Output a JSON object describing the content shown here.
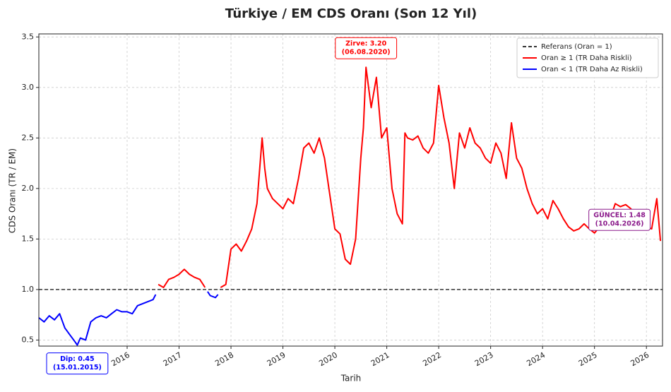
{
  "chart_data": {
    "type": "line",
    "title": "Türkiye / EM CDS Oranı (Son 12 Yıl)",
    "x_label": "Tarih",
    "y_label": "CDS Oranı (TR / EM)",
    "xlim": [
      2014.3,
      2026.31
    ],
    "xticks": [
      2016,
      2017,
      2018,
      2019,
      2020,
      2021,
      2022,
      2023,
      2024,
      2025,
      2026
    ],
    "ylim": [
      0.44,
      3.53
    ],
    "yticks": [
      0.5,
      {
        "value": 1,
        "label": "1.0"
      },
      1.5,
      {
        "value": 2,
        "label": "2.0"
      },
      2.5,
      {
        "value": 3,
        "label": "3.0"
      },
      3.5
    ],
    "grid": true,
    "legend": "upper right",
    "reference_line": {
      "name": "Referans (Oran = 1)",
      "value": 1,
      "color": "#333333"
    },
    "x": [
      2014.3,
      2014.4,
      2014.5,
      2014.6,
      2014.7,
      2014.8,
      2014.9,
      2015.0,
      2015.04,
      2015.1,
      2015.2,
      2015.3,
      2015.4,
      2015.5,
      2015.6,
      2015.7,
      2015.8,
      2015.9,
      2016.0,
      2016.1,
      2016.2,
      2016.3,
      2016.4,
      2016.5,
      2016.55,
      2016.6,
      2016.7,
      2016.8,
      2016.9,
      2017.0,
      2017.1,
      2017.2,
      2017.3,
      2017.4,
      2017.5,
      2017.55,
      2017.6,
      2017.7,
      2017.75,
      2017.8,
      2017.9,
      2018.0,
      2018.1,
      2018.2,
      2018.3,
      2018.4,
      2018.5,
      2018.6,
      2018.65,
      2018.7,
      2018.8,
      2018.9,
      2019.0,
      2019.1,
      2019.2,
      2019.3,
      2019.4,
      2019.5,
      2019.6,
      2019.7,
      2019.8,
      2019.9,
      2020.0,
      2020.1,
      2020.2,
      2020.3,
      2020.4,
      2020.5,
      2020.55,
      2020.6,
      2020.7,
      2020.8,
      2020.9,
      2021.0,
      2021.1,
      2021.2,
      2021.3,
      2021.35,
      2021.4,
      2021.5,
      2021.6,
      2021.7,
      2021.8,
      2021.9,
      2022.0,
      2022.1,
      2022.2,
      2022.3,
      2022.4,
      2022.5,
      2022.6,
      2022.7,
      2022.8,
      2022.9,
      2023.0,
      2023.1,
      2023.2,
      2023.3,
      2023.4,
      2023.5,
      2023.6,
      2023.7,
      2023.8,
      2023.9,
      2024.0,
      2024.1,
      2024.2,
      2024.3,
      2024.4,
      2024.5,
      2024.6,
      2024.7,
      2024.8,
      2024.9,
      2025.0,
      2025.1,
      2025.2,
      2025.3,
      2025.4,
      2025.5,
      2025.6,
      2025.7,
      2025.8,
      2025.9,
      2026.0,
      2026.1,
      2026.2,
      2026.27
    ],
    "series": [
      {
        "name": "Oran ≥ 1 (TR Daha Riskli)",
        "color": "#ff0000",
        "values": [
          null,
          null,
          null,
          null,
          null,
          null,
          null,
          null,
          null,
          null,
          null,
          null,
          null,
          null,
          null,
          null,
          null,
          null,
          null,
          null,
          null,
          null,
          null,
          null,
          null,
          1.05,
          1.02,
          1.1,
          1.12,
          1.15,
          1.2,
          1.15,
          1.12,
          1.1,
          1.02,
          null,
          null,
          null,
          null,
          1.02,
          1.05,
          1.4,
          1.45,
          1.38,
          1.48,
          1.6,
          1.85,
          2.5,
          2.2,
          2.0,
          1.9,
          1.85,
          1.8,
          1.9,
          1.85,
          2.1,
          2.4,
          2.45,
          2.35,
          2.5,
          2.3,
          1.95,
          1.6,
          1.55,
          1.3,
          1.25,
          1.5,
          2.3,
          2.6,
          3.2,
          2.8,
          3.1,
          2.5,
          2.6,
          2.0,
          1.75,
          1.65,
          2.55,
          2.5,
          2.48,
          2.52,
          2.4,
          2.35,
          2.45,
          3.02,
          2.7,
          2.45,
          2.0,
          2.55,
          2.4,
          2.6,
          2.45,
          2.4,
          2.3,
          2.25,
          2.45,
          2.35,
          2.1,
          2.65,
          2.3,
          2.2,
          2.0,
          1.85,
          1.75,
          1.8,
          1.7,
          1.88,
          1.8,
          1.7,
          1.62,
          1.58,
          1.6,
          1.65,
          1.6,
          1.56,
          1.62,
          1.65,
          1.7,
          1.85,
          1.82,
          1.84,
          1.8,
          1.72,
          1.7,
          1.62,
          1.6,
          1.9,
          1.48
        ]
      },
      {
        "name": "Oran < 1 (TR Daha Az Riskli)",
        "color": "#0000ff",
        "values": [
          0.72,
          0.68,
          0.74,
          0.7,
          0.76,
          0.62,
          0.55,
          0.48,
          0.45,
          0.52,
          0.5,
          0.68,
          0.72,
          0.74,
          0.72,
          0.76,
          0.8,
          0.78,
          0.78,
          0.76,
          0.84,
          0.86,
          0.88,
          0.9,
          0.95,
          null,
          null,
          null,
          null,
          null,
          null,
          null,
          null,
          null,
          null,
          0.98,
          0.94,
          0.92,
          0.95,
          null,
          null,
          null,
          null,
          null,
          null,
          null,
          null,
          null,
          null,
          null,
          null,
          null,
          null,
          null,
          null,
          null,
          null,
          null,
          null,
          null,
          null,
          null,
          null,
          null,
          null,
          null,
          null,
          null,
          null,
          null,
          null,
          null,
          null,
          null,
          null,
          null,
          null,
          null,
          null,
          null,
          null,
          null,
          null,
          null,
          null,
          null,
          null,
          null,
          null,
          null,
          null,
          null,
          null,
          null,
          null,
          null,
          null,
          null,
          null,
          null,
          null,
          null,
          null,
          null,
          null,
          null,
          null,
          null,
          null,
          null,
          null,
          null,
          null,
          null,
          null,
          null,
          null,
          null,
          null,
          null,
          null,
          null,
          null,
          null,
          null,
          null,
          null,
          null
        ]
      }
    ],
    "annotations": [
      {
        "lines": [
          "Zirve: 3.20",
          "(06.08.2020)"
        ],
        "x": 2020.6,
        "y": 3.2,
        "color": "#ff0000",
        "placement": "above"
      },
      {
        "lines": [
          "Dip: 0.45",
          "(15.01.2015)"
        ],
        "x": 2015.04,
        "y": 0.45,
        "color": "#0000ff",
        "placement": "below"
      },
      {
        "lines": [
          "GÜNCEL: 1.48",
          "(10.04.2026)"
        ],
        "x": 2026.27,
        "y": 1.48,
        "color": "#8b1a8b",
        "placement": "left"
      }
    ]
  }
}
